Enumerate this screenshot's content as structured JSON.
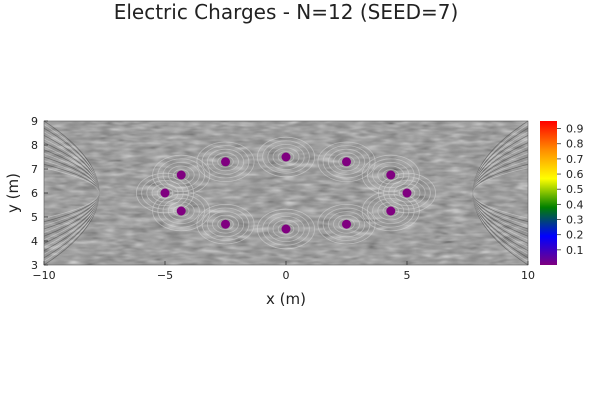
{
  "chart_data": {
    "type": "scatter",
    "title": "Electric Charges - N=12 (SEED=7)",
    "xlabel": "x (m)",
    "ylabel": "y (m)",
    "xlim": [
      -10,
      10
    ],
    "ylim": [
      3,
      9
    ],
    "xticks": [
      -10,
      -5,
      0,
      5,
      10
    ],
    "xtick_labels": [
      "−10",
      "−5",
      "0",
      "5",
      "10"
    ],
    "yticks": [
      3,
      4,
      5,
      6,
      7,
      8,
      9
    ],
    "ytick_labels": [
      "3",
      "4",
      "5",
      "6",
      "7",
      "8",
      "9"
    ],
    "background": "line-integral-convolution field texture (grayscale)",
    "point_color": "#800080",
    "points": [
      {
        "x": 5.0,
        "y": 6.0
      },
      {
        "x": 4.33,
        "y": 6.75
      },
      {
        "x": 2.5,
        "y": 7.3
      },
      {
        "x": 0.0,
        "y": 7.5
      },
      {
        "x": -2.5,
        "y": 7.3
      },
      {
        "x": -4.33,
        "y": 6.75
      },
      {
        "x": -5.0,
        "y": 6.0
      },
      {
        "x": -4.33,
        "y": 5.25
      },
      {
        "x": -2.5,
        "y": 4.7
      },
      {
        "x": 0.0,
        "y": 4.5
      },
      {
        "x": 2.5,
        "y": 4.7
      },
      {
        "x": 4.33,
        "y": 5.25
      }
    ],
    "colorbar": {
      "ticks": [
        0.1,
        0.2,
        0.3,
        0.4,
        0.5,
        0.6,
        0.7,
        0.8,
        0.9
      ],
      "tick_labels": [
        "0.1",
        "0.2",
        "0.3",
        "0.4",
        "0.5",
        "0.6",
        "0.7",
        "0.8",
        "0.9"
      ],
      "range": [
        0,
        0.95
      ],
      "colors": [
        "#7f007f",
        "#0000ff",
        "#008000",
        "#ffff00",
        "#ff8c00",
        "#ff0000"
      ]
    },
    "grid": false,
    "legend": "none"
  }
}
